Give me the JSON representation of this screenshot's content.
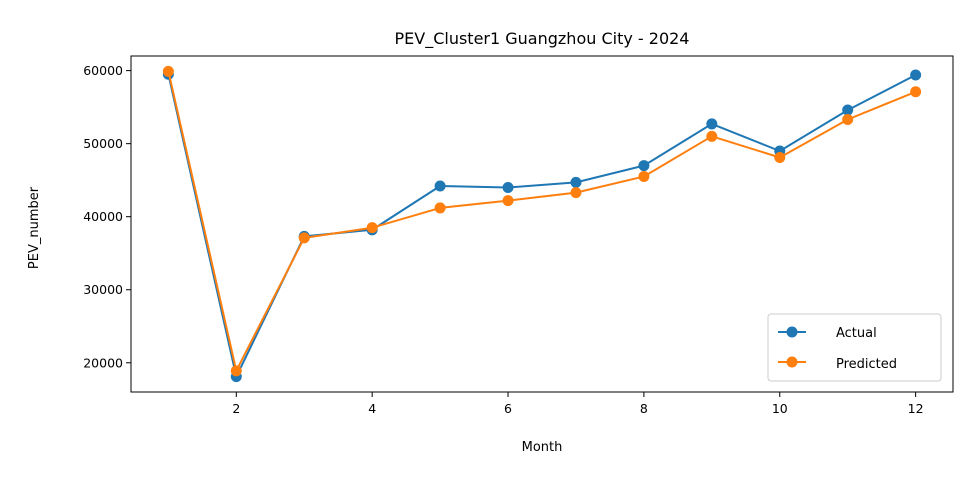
{
  "chart_data": {
    "type": "line",
    "title": "PEV_Cluster1 Guangzhou City - 2024",
    "xlabel": "Month",
    "ylabel": "PEV_number",
    "x": [
      1,
      2,
      3,
      4,
      5,
      6,
      7,
      8,
      9,
      10,
      11,
      12
    ],
    "xticks": [
      2,
      4,
      6,
      8,
      10,
      12
    ],
    "yticks": [
      20000,
      30000,
      40000,
      50000,
      60000
    ],
    "xlim": [
      0.45,
      12.55
    ],
    "ylim": [
      16000,
      62000
    ],
    "grid": false,
    "legend": "lower-right",
    "series": [
      {
        "name": "Actual",
        "color": "#1f77b4",
        "values": [
          59500,
          18100,
          37300,
          38200,
          44200,
          44000,
          44700,
          47000,
          52700,
          49000,
          54600,
          59400
        ]
      },
      {
        "name": "Predicted",
        "color": "#ff7f0e",
        "values": [
          59900,
          18900,
          37100,
          38500,
          41200,
          42200,
          43300,
          45500,
          51000,
          48100,
          53300,
          57100
        ]
      }
    ]
  }
}
